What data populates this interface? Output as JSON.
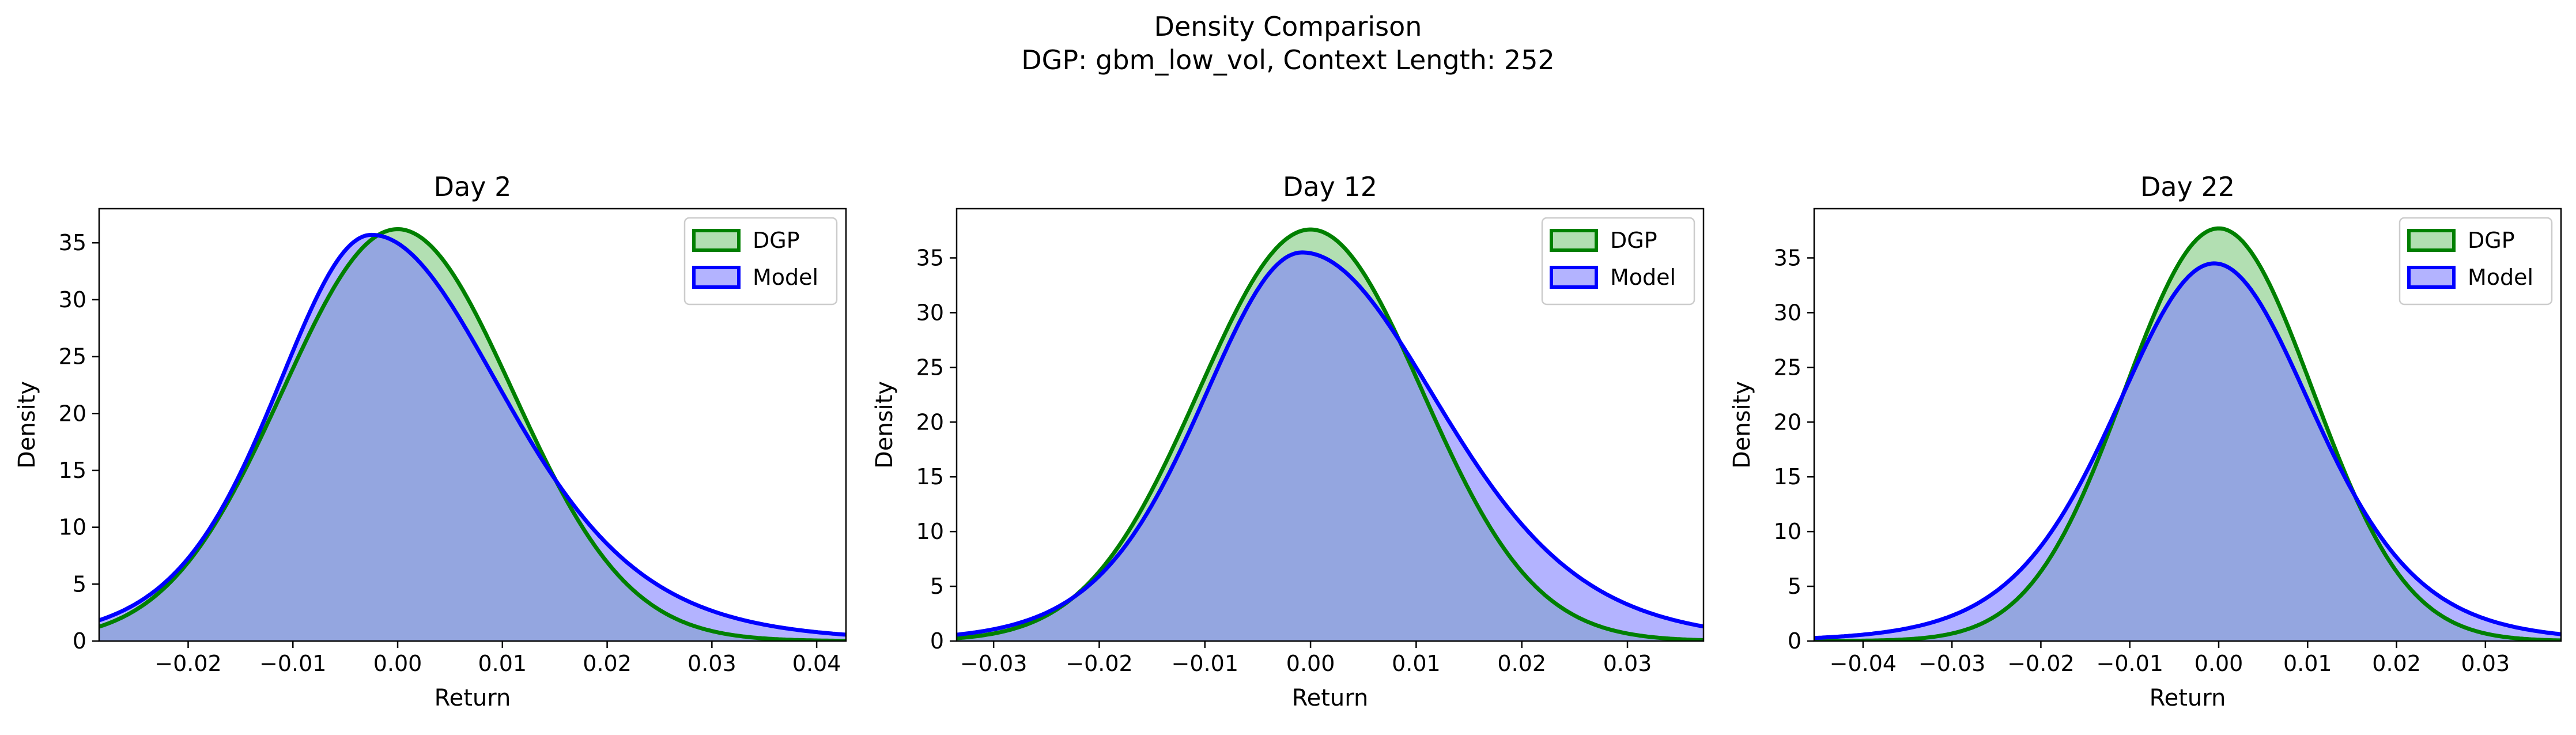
{
  "figure": {
    "title_line1": "Density Comparison",
    "title_line2": "DGP: gbm_low_vol, Context Length: 252"
  },
  "colors": {
    "dgp_line": "#008000",
    "dgp_fill": "#7fc97f",
    "model_line": "#0000ff",
    "model_fill": "#8080ff",
    "overlap_fill": "#7f98c9"
  },
  "chart_data": [
    {
      "type": "area",
      "title": "Day 2",
      "xlabel": "Return",
      "ylabel": "Density",
      "xlim": [
        -0.0285,
        0.0428
      ],
      "ylim": [
        0,
        38
      ],
      "xticks": [
        -0.02,
        -0.01,
        0.0,
        0.01,
        0.02,
        0.03,
        0.04
      ],
      "xtick_labels": [
        "−0.02",
        "−0.01",
        "0.00",
        "0.01",
        "0.02",
        "0.03",
        "0.04"
      ],
      "yticks": [
        0,
        5,
        10,
        15,
        20,
        25,
        30,
        35
      ],
      "ytick_labels": [
        "0",
        "5",
        "10",
        "15",
        "20",
        "25",
        "30",
        "35"
      ],
      "legend": {
        "position": "top-right",
        "entries": [
          "DGP",
          "Model"
        ]
      },
      "series": [
        {
          "name": "DGP",
          "mean": 0.0,
          "sd": 0.011,
          "peak": 36.2
        },
        {
          "name": "Model",
          "mean": -0.0025,
          "sd_left": 0.0095,
          "sd_right": 0.013,
          "peak": 35.7,
          "tail_df": 8
        }
      ]
    },
    {
      "type": "area",
      "title": "Day 12",
      "xlabel": "Return",
      "ylabel": "Density",
      "xlim": [
        -0.0335,
        0.0372
      ],
      "ylim": [
        0,
        39.5
      ],
      "xticks": [
        -0.03,
        -0.02,
        -0.01,
        0.0,
        0.01,
        0.02,
        0.03
      ],
      "xtick_labels": [
        "−0.03",
        "−0.02",
        "−0.01",
        "0.00",
        "0.01",
        "0.02",
        "0.03"
      ],
      "yticks": [
        0,
        5,
        10,
        15,
        20,
        25,
        30,
        35
      ],
      "ytick_labels": [
        "0",
        "5",
        "10",
        "15",
        "20",
        "25",
        "30",
        "35"
      ],
      "legend": {
        "position": "top-right",
        "entries": [
          "DGP",
          "Model"
        ]
      },
      "series": [
        {
          "name": "DGP",
          "mean": 0.0,
          "sd": 0.0106,
          "peak": 37.6
        },
        {
          "name": "Model",
          "mean": -0.0008,
          "sd_left": 0.0098,
          "sd_right": 0.0133,
          "peak": 35.5,
          "tail_df": 10
        }
      ]
    },
    {
      "type": "area",
      "title": "Day 22",
      "xlabel": "Return",
      "ylabel": "Density",
      "xlim": [
        -0.0455,
        0.0385
      ],
      "ylim": [
        0,
        39.5
      ],
      "xticks": [
        -0.04,
        -0.03,
        -0.02,
        -0.01,
        0.0,
        0.01,
        0.02,
        0.03
      ],
      "xtick_labels": [
        "−0.04",
        "−0.03",
        "−0.02",
        "−0.01",
        "0.00",
        "0.01",
        "0.02",
        "0.03"
      ],
      "yticks": [
        0,
        5,
        10,
        15,
        20,
        25,
        30,
        35
      ],
      "ytick_labels": [
        "0",
        "5",
        "10",
        "15",
        "20",
        "25",
        "30",
        "35"
      ],
      "legend": {
        "position": "top-right",
        "entries": [
          "DGP",
          "Model"
        ]
      },
      "series": [
        {
          "name": "DGP",
          "mean": 0.0,
          "sd": 0.0106,
          "peak": 37.7
        },
        {
          "name": "Model",
          "mean": -0.0005,
          "sd_left": 0.0115,
          "sd_right": 0.0115,
          "peak": 34.5,
          "tail_df": 8
        }
      ]
    }
  ]
}
